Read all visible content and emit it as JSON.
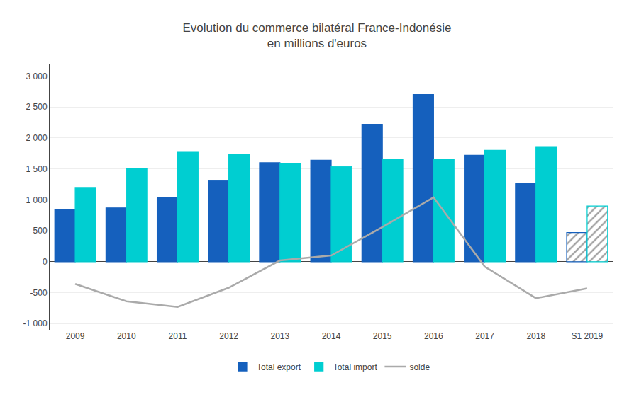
{
  "chart_data": {
    "type": "bar",
    "title": "Evolution du commerce bilatéral France-Indonésie\nen millions d'euros",
    "categories": [
      "2009",
      "2010",
      "2011",
      "2012",
      "2013",
      "2014",
      "2015",
      "2016",
      "2017",
      "2018",
      "S1 2019"
    ],
    "series": [
      {
        "name": "Total export",
        "type": "bar",
        "color": "#1560BD",
        "values": [
          840,
          870,
          1040,
          1310,
          1600,
          1640,
          2220,
          2700,
          1720,
          1260,
          470
        ]
      },
      {
        "name": "Total import",
        "type": "bar",
        "color": "#00CED1",
        "values": [
          1200,
          1510,
          1770,
          1730,
          1580,
          1540,
          1660,
          1660,
          1800,
          1850,
          900
        ]
      },
      {
        "name": "solde",
        "type": "line",
        "color": "#aaaaaa",
        "values": [
          -360,
          -640,
          -730,
          -420,
          20,
          100,
          560,
          1040,
          -80,
          -590,
          -430
        ]
      }
    ],
    "ylim": [
      -1100,
      3200
    ],
    "yticks": [
      {
        "value": -1000,
        "label": "-1 000"
      },
      -500,
      0,
      500,
      {
        "value": 1000,
        "label": "1 000"
      },
      {
        "value": 1500,
        "label": "1 500"
      },
      {
        "value": 2000,
        "label": "2 000"
      },
      {
        "value": 2500,
        "label": "2 500"
      },
      {
        "value": 3000,
        "label": "3 000"
      }
    ],
    "grid": true,
    "legend": "bottom"
  }
}
